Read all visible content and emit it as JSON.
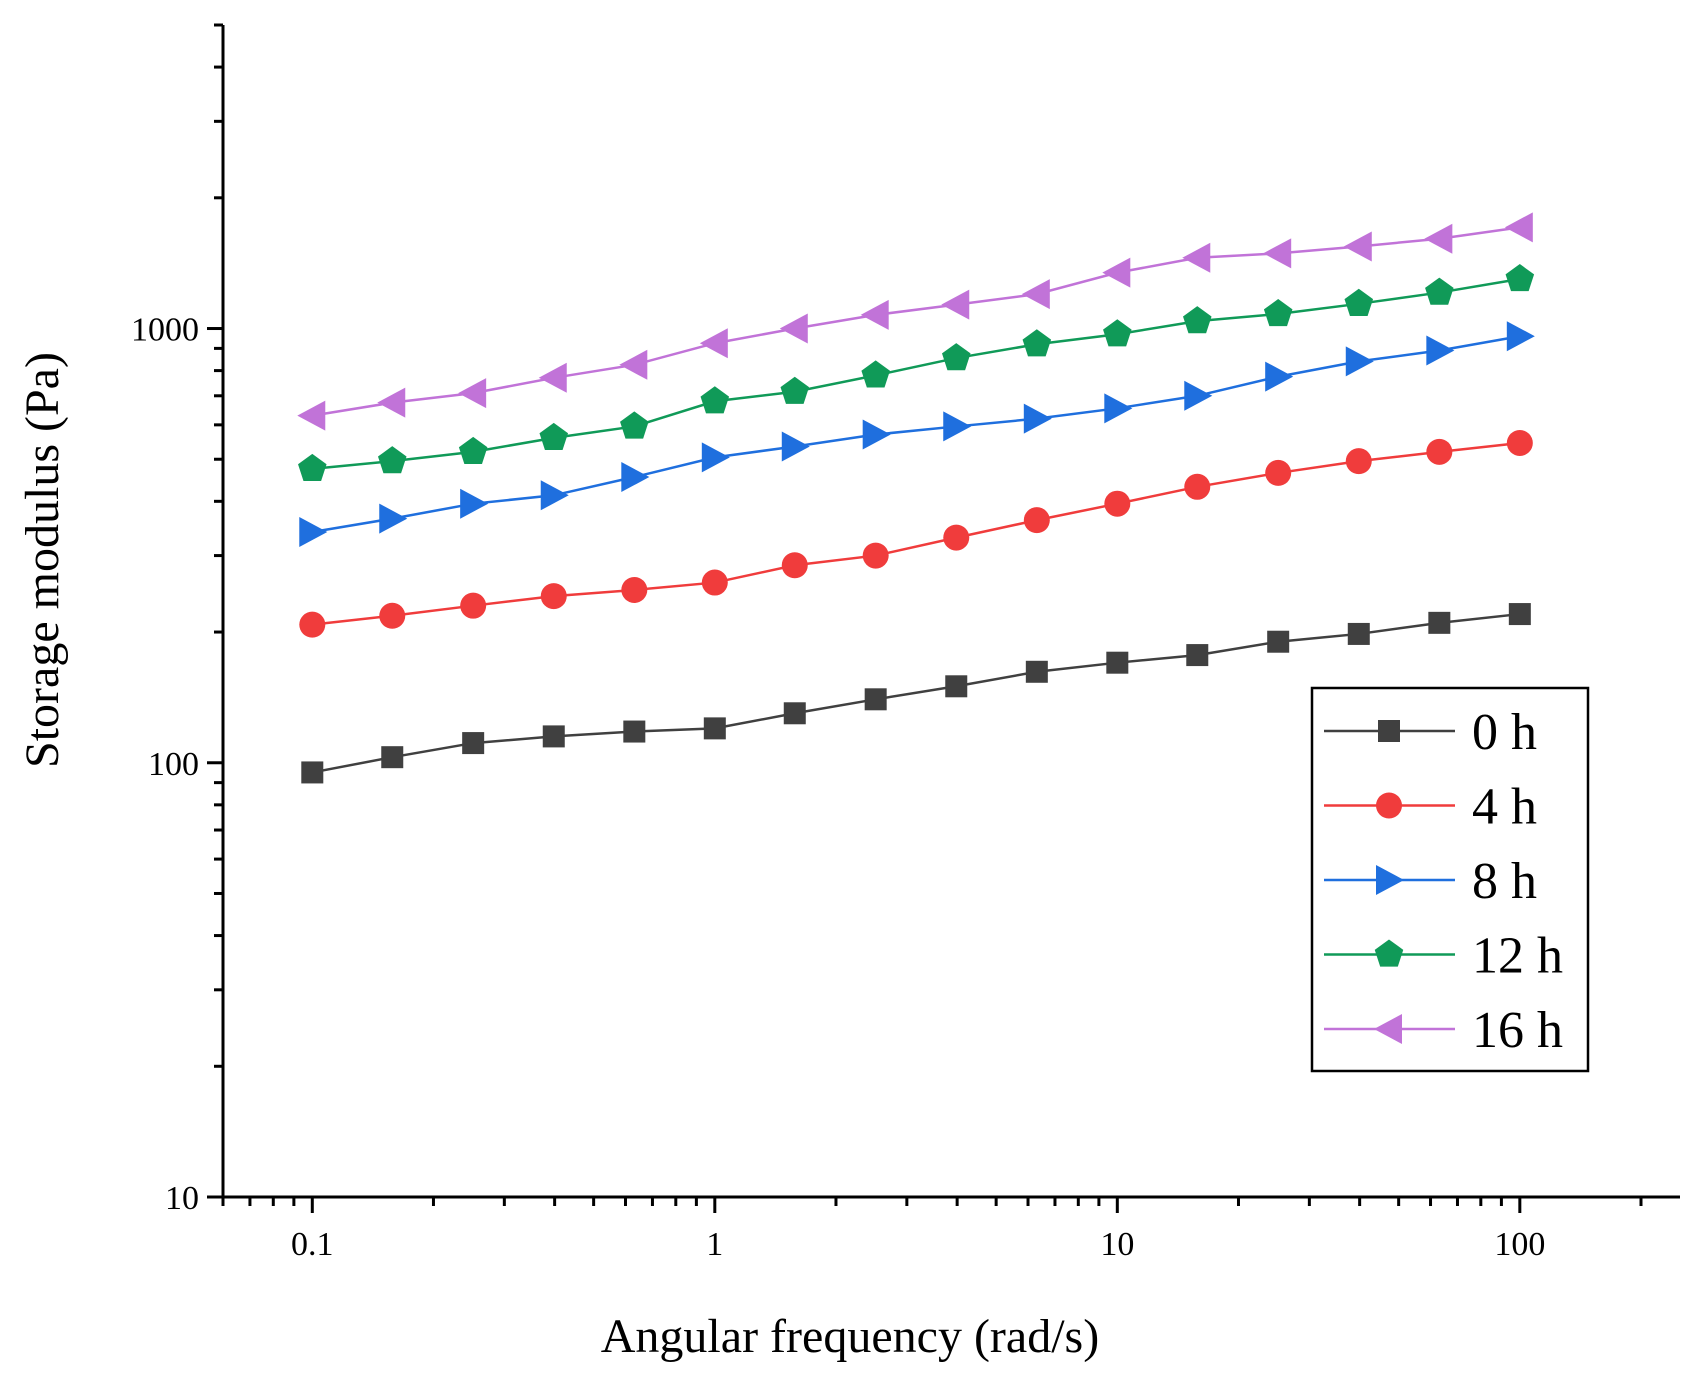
{
  "chart_data": {
    "type": "line",
    "title": "",
    "xlabel": "Angular frequency (rad/s)",
    "ylabel": "Storage modulus (Pa)",
    "xscale": "log",
    "yscale": "log",
    "xlim": [
      0.06,
      250
    ],
    "ylim": [
      10,
      5000
    ],
    "xticks": [
      0.1,
      1,
      10,
      100
    ],
    "xtick_labels": [
      "0.1",
      "1",
      "10",
      "100"
    ],
    "yticks": [
      10,
      100,
      1000
    ],
    "ytick_labels": [
      "10",
      "100",
      "1000"
    ],
    "grid": false,
    "legend_position": "bottom-right",
    "x": [
      0.1,
      0.158,
      0.251,
      0.398,
      0.631,
      1,
      1.58,
      2.51,
      3.98,
      6.31,
      10,
      15.8,
      25.1,
      39.8,
      63.1,
      100
    ],
    "series": [
      {
        "name": "0 h",
        "color": "#404040",
        "marker": "square",
        "values": [
          95,
          103,
          111,
          115,
          118,
          120,
          130,
          140,
          150,
          162,
          170,
          177,
          190,
          198,
          210,
          220
        ]
      },
      {
        "name": "4 h",
        "color": "#f03c3c",
        "marker": "circle",
        "values": [
          208,
          218,
          230,
          242,
          250,
          260,
          285,
          300,
          330,
          362,
          395,
          432,
          465,
          495,
          520,
          545
        ]
      },
      {
        "name": "8 h",
        "color": "#1f6fde",
        "marker": "triangle-right",
        "values": [
          340,
          365,
          395,
          413,
          455,
          505,
          535,
          570,
          595,
          620,
          655,
          700,
          775,
          840,
          890,
          960
        ]
      },
      {
        "name": "12 h",
        "color": "#109a58",
        "marker": "pentagon",
        "values": [
          475,
          495,
          520,
          560,
          595,
          680,
          715,
          780,
          855,
          920,
          970,
          1040,
          1080,
          1140,
          1210,
          1300
        ]
      },
      {
        "name": "16 h",
        "color": "#c173d8",
        "marker": "triangle-left",
        "values": [
          630,
          675,
          710,
          770,
          825,
          925,
          1000,
          1075,
          1135,
          1200,
          1345,
          1455,
          1490,
          1545,
          1610,
          1710
        ]
      }
    ]
  }
}
